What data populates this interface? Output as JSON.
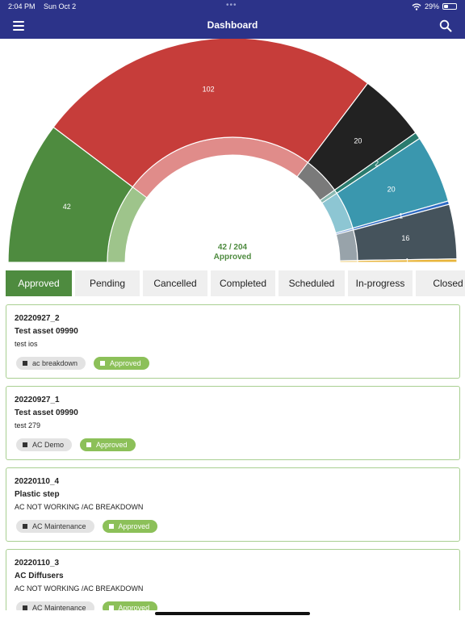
{
  "status_bar": {
    "time": "2:04 PM",
    "date": "Sun Oct 2",
    "battery": "29%",
    "battery_level": 0.29,
    "dots": "•••"
  },
  "app_bar": {
    "title": "Dashboard"
  },
  "chart_data": {
    "type": "pie",
    "variant": "semi-donut",
    "slices": [
      {
        "value": 42,
        "label": "42",
        "color": "#4e8b3f",
        "inner_color": "#9ec48b"
      },
      {
        "value": 102,
        "label": "102",
        "color": "#c63d3a",
        "inner_color": "#e08c8a"
      },
      {
        "value": 20,
        "label": "20",
        "color": "#222222",
        "inner_color": "#7a7a7a"
      },
      {
        "value": 2,
        "label": "2",
        "color": "#2a7b6e",
        "inner_color": "#8ab8b0"
      },
      {
        "value": 20,
        "label": "20",
        "color": "#3a97ae",
        "inner_color": "#8dc6d3"
      },
      {
        "value": 1,
        "label": "1",
        "color": "#2f6bc4",
        "inner_color": "#8faee0"
      },
      {
        "value": 16,
        "label": "16",
        "color": "#45535c",
        "inner_color": "#98a3aa"
      },
      {
        "value": 1,
        "label": "1",
        "color": "#e8b43a",
        "inner_color": "#f2d68c"
      }
    ],
    "center_value": "42 / 204",
    "center_label": "Approved"
  },
  "tabs": [
    {
      "label": "Approved",
      "active": true
    },
    {
      "label": "Pending",
      "active": false
    },
    {
      "label": "Cancelled",
      "active": false
    },
    {
      "label": "Completed",
      "active": false
    },
    {
      "label": "Scheduled",
      "active": false
    },
    {
      "label": "In-progress",
      "active": false
    },
    {
      "label": "Closed",
      "active": false
    }
  ],
  "cards": [
    {
      "id": "20220927_2",
      "asset": "Test asset 09990",
      "description": "test ios",
      "category": "ac breakdown",
      "status": "Approved"
    },
    {
      "id": "20220927_1",
      "asset": "Test asset 09990",
      "description": "test 279",
      "category": "AC Demo",
      "status": "Approved"
    },
    {
      "id": "20220110_4",
      "asset": "Plastic step",
      "description": "AC NOT WORKING /AC BREAKDOWN",
      "category": "AC Maintenance",
      "status": "Approved"
    },
    {
      "id": "20220110_3",
      "asset": "AC Diffusers",
      "description": "AC NOT WORKING /AC BREAKDOWN",
      "category": "AC Maintenance",
      "status": "Approved"
    }
  ]
}
